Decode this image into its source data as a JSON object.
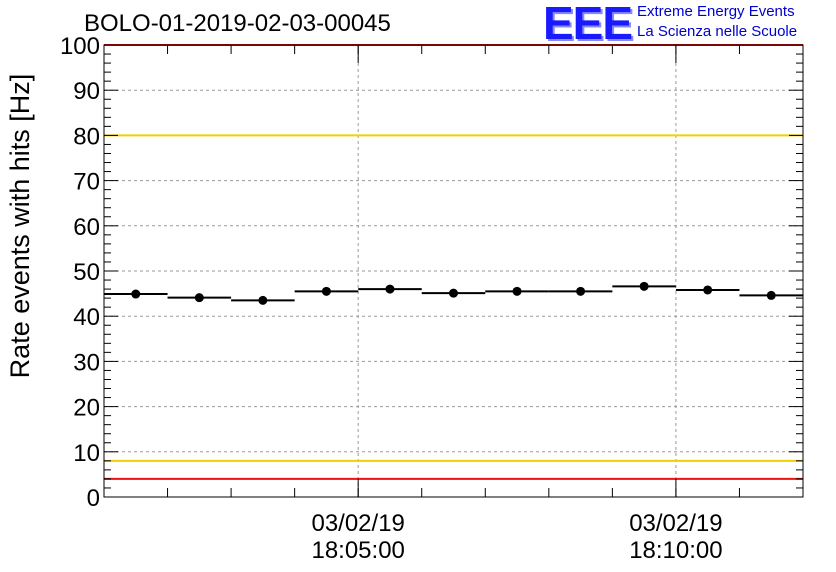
{
  "title": "BOLO-01-2019-02-03-00045",
  "logo": {
    "mark": "EEE",
    "line1": "Extreme Energy Events",
    "line2": "La Scienza nelle Scuole"
  },
  "chart_data": {
    "type": "scatter",
    "ylabel": "Rate events with hits [Hz]",
    "ylim": [
      0,
      100
    ],
    "yticks": [
      0,
      10,
      20,
      30,
      40,
      50,
      60,
      70,
      80,
      90,
      100
    ],
    "xticks": [
      {
        "date": "03/02/19",
        "time": "18:05:00"
      },
      {
        "date": "03/02/19",
        "time": "18:10:00"
      }
    ],
    "x_range_time": [
      "18:01:00",
      "18:12:00"
    ],
    "grid": true,
    "points": [
      {
        "x_start": "18:01:00",
        "x_end": "18:02:00",
        "y": 44.9
      },
      {
        "x_start": "18:02:00",
        "x_end": "18:03:00",
        "y": 44.1
      },
      {
        "x_start": "18:03:00",
        "x_end": "18:04:00",
        "y": 43.5
      },
      {
        "x_start": "18:04:00",
        "x_end": "18:05:00",
        "y": 45.5
      },
      {
        "x_start": "18:05:00",
        "x_end": "18:06:00",
        "y": 46.0
      },
      {
        "x_start": "18:06:00",
        "x_end": "18:07:00",
        "y": 45.1
      },
      {
        "x_start": "18:07:00",
        "x_end": "18:08:00",
        "y": 45.5
      },
      {
        "x_start": "18:08:00",
        "x_end": "18:09:00",
        "y": 45.5
      },
      {
        "x_start": "18:09:00",
        "x_end": "18:10:00",
        "y": 46.6
      },
      {
        "x_start": "18:10:00",
        "x_end": "18:11:00",
        "y": 45.8
      },
      {
        "x_start": "18:11:00",
        "x_end": "18:12:00",
        "y": 44.6
      }
    ],
    "reference_lines": [
      {
        "y": 100,
        "color": "#ee1111"
      },
      {
        "y": 80,
        "color": "#f0d000"
      },
      {
        "y": 8,
        "color": "#f0d000"
      },
      {
        "y": 4,
        "color": "#ee1111"
      }
    ]
  }
}
